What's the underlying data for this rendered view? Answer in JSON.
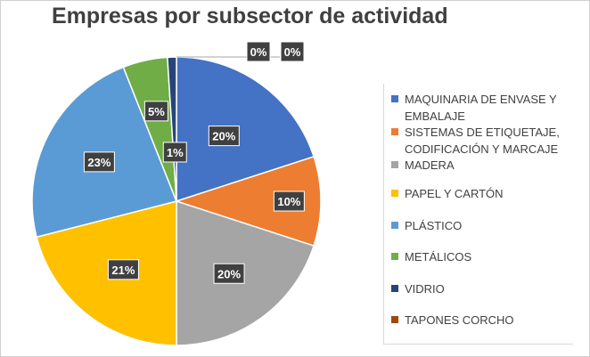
{
  "chart_data": {
    "type": "pie",
    "title": "Empresas por subsector de actividad",
    "categories": [
      "MAQUINARIA DE ENVASE Y EMBALAJE",
      "SISTEMAS DE ETIQUETAJE, CODIFICACIÓN Y MARCAJE",
      "MADERA",
      "PAPEL Y CARTÓN",
      "PLÁSTICO",
      "METÁLICOS",
      "VIDRIO",
      "TAPONES CORCHO"
    ],
    "values": [
      20,
      10,
      20,
      21,
      23,
      5,
      1,
      0
    ],
    "data_labels": [
      "20%",
      "10%",
      "20%",
      "21%",
      "23%",
      "5%",
      "1%",
      "0%"
    ],
    "extra_labels": [
      "0%"
    ],
    "colors": [
      "#4472c4",
      "#ed7d31",
      "#a5a5a5",
      "#ffc000",
      "#5b9bd5",
      "#70ad47",
      "#264478",
      "#9e480e"
    ],
    "legend_position": "right",
    "label_style": "dark callout box with white bold text"
  }
}
